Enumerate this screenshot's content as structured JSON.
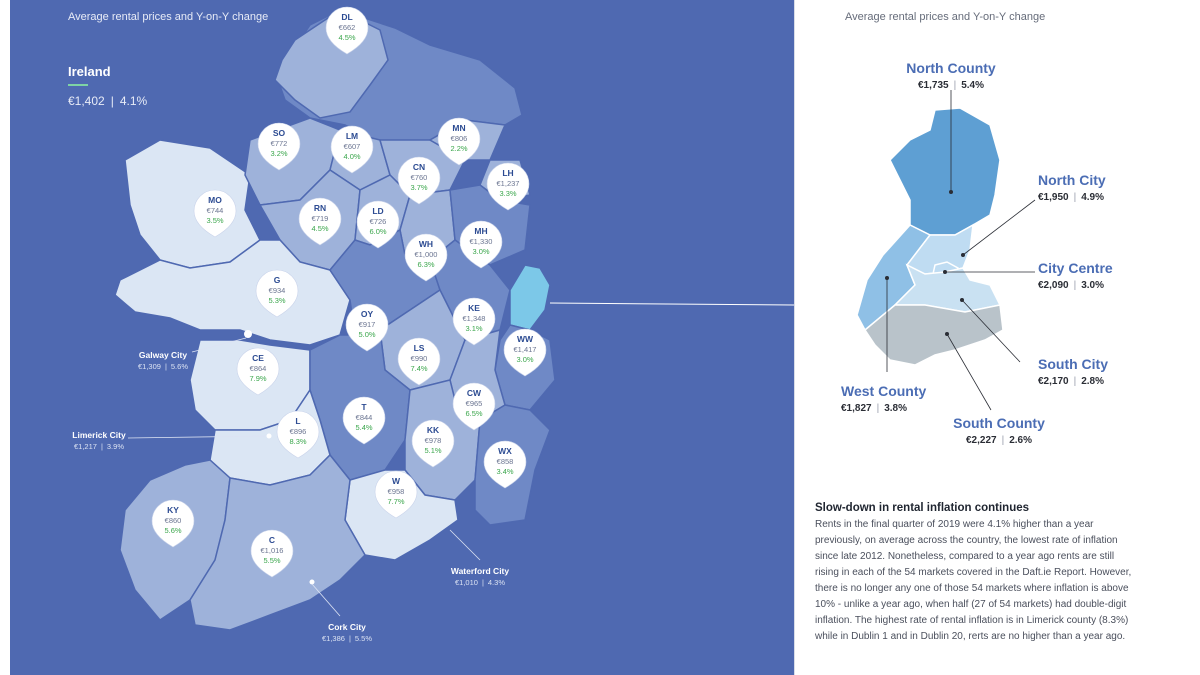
{
  "map_title": "Average rental prices and Y-on-Y change",
  "country": {
    "name": "Ireland",
    "price": "€1,402",
    "change": "4.1%"
  },
  "counties": [
    {
      "code": "DL",
      "price": "€662",
      "change": "4.5%"
    },
    {
      "code": "SO",
      "price": "€772",
      "change": "3.2%"
    },
    {
      "code": "LM",
      "price": "€607",
      "change": "4.0%"
    },
    {
      "code": "MN",
      "price": "€806",
      "change": "2.2%"
    },
    {
      "code": "CN",
      "price": "€760",
      "change": "3.7%"
    },
    {
      "code": "LH",
      "price": "€1,237",
      "change": "3.3%"
    },
    {
      "code": "MO",
      "price": "€744",
      "change": "3.5%"
    },
    {
      "code": "RN",
      "price": "€719",
      "change": "4.5%"
    },
    {
      "code": "LD",
      "price": "€726",
      "change": "6.0%"
    },
    {
      "code": "MH",
      "price": "€1,330",
      "change": "3.0%"
    },
    {
      "code": "WH",
      "price": "€1,000",
      "change": "6.3%"
    },
    {
      "code": "G",
      "price": "€934",
      "change": "5.3%"
    },
    {
      "code": "OY",
      "price": "€917",
      "change": "5.0%"
    },
    {
      "code": "KE",
      "price": "€1,348",
      "change": "3.1%"
    },
    {
      "code": "WW",
      "price": "€1,417",
      "change": "3.0%"
    },
    {
      "code": "CE",
      "price": "€864",
      "change": "7.9%"
    },
    {
      "code": "LS",
      "price": "€990",
      "change": "7.4%"
    },
    {
      "code": "CW",
      "price": "€965",
      "change": "6.5%"
    },
    {
      "code": "T",
      "price": "€844",
      "change": "5.4%"
    },
    {
      "code": "L",
      "price": "€896",
      "change": "8.3%"
    },
    {
      "code": "KK",
      "price": "€978",
      "change": "5.1%"
    },
    {
      "code": "WX",
      "price": "€858",
      "change": "3.4%"
    },
    {
      "code": "W",
      "price": "€958",
      "change": "7.7%"
    },
    {
      "code": "KY",
      "price": "€860",
      "change": "5.6%"
    },
    {
      "code": "C",
      "price": "€1,016",
      "change": "5.5%"
    }
  ],
  "cities": [
    {
      "name": "Galway City",
      "price": "€1,309",
      "change": "5.6%"
    },
    {
      "name": "Limerick City",
      "price": "€1,217",
      "change": "3.9%"
    },
    {
      "name": "Waterford City",
      "price": "€1,010",
      "change": "4.3%"
    },
    {
      "name": "Cork City",
      "price": "€1,386",
      "change": "5.5%"
    }
  ],
  "dublin": {
    "title": "Average rental prices and Y-on-Y change",
    "areas": [
      {
        "name": "North County",
        "price": "€1,735",
        "change": "5.4%"
      },
      {
        "name": "North City",
        "price": "€1,950",
        "change": "4.9%"
      },
      {
        "name": "City Centre",
        "price": "€2,090",
        "change": "3.0%"
      },
      {
        "name": "South City",
        "price": "€2,170",
        "change": "2.8%"
      },
      {
        "name": "West County",
        "price": "€1,827",
        "change": "3.8%"
      },
      {
        "name": "South County",
        "price": "€2,227",
        "change": "2.6%"
      }
    ]
  },
  "article": {
    "title": "Slow-down in rental inflation continues",
    "body": "Rents in the final quarter of 2019 were 4.1% higher than a year previously, on average across the country, the lowest rate of inflation since late 2012. Nonetheless, compared to a year ago rents are still rising in each of the 54 markets covered in the Daft.ie Report. However, there is no longer any one of those 54 markets where inflation is above 10% - unlike a year ago, when half (27 of 54 markets) had double-digit inflation. The highest rate of rental inflation is in Limerick county (8.3%) while in Dublin 1 and in Dublin 20, rerts are no higher than a year ago."
  },
  "colors": {
    "sea": "#4f69b1",
    "county_light": "#dbe6f4",
    "county_mid": "#9eb2da",
    "county_dark": "#6f89c6",
    "dublin_highlight": "#7cc8e8",
    "label_blue": "#4b6db4",
    "change_green": "#3aa64b"
  }
}
